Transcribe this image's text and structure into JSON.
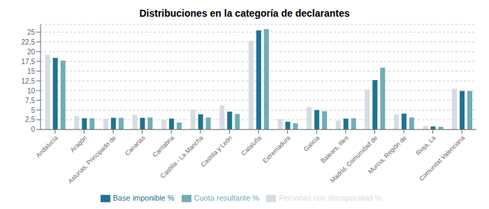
{
  "chart_data": {
    "type": "bar",
    "title": "Distribuciones en la categoría de declarantes",
    "categories": [
      "Andalucía",
      "Aragón",
      "Asturias, Principado de",
      "Canarias",
      "Cantabria",
      "Castilla - La Mancha",
      "Castilla y León",
      "Cataluña",
      "Extremadura",
      "Galicia",
      "Balears, Illes",
      "Madrid, Comunidad de",
      "Murcia, Región de",
      "Rioja, La",
      "Comunitat Valenciana"
    ],
    "series": [
      {
        "name": "Personas con discapacidad %",
        "color": "#d6dce4",
        "values": [
          19.2,
          3.5,
          2.8,
          3.8,
          2.5,
          5.1,
          6.2,
          22.8,
          2.7,
          5.8,
          2.3,
          10.3,
          3.9,
          0.9,
          10.5
        ]
      },
      {
        "name": "Base imponible %",
        "color": "#1f7391",
        "values": [
          18.4,
          2.9,
          3.0,
          3.0,
          2.8,
          3.9,
          4.6,
          25.5,
          2.0,
          5.0,
          2.8,
          12.7,
          4.1,
          0.8,
          9.9
        ]
      },
      {
        "name": "Cuota resultante %",
        "color": "#70adb5",
        "values": [
          17.7,
          2.9,
          3.0,
          3.1,
          1.8,
          3.1,
          4.0,
          25.8,
          1.6,
          4.7,
          2.9,
          15.9,
          3.1,
          0.7,
          9.9
        ]
      }
    ],
    "ylim": [
      0,
      27
    ],
    "yticks": [
      0,
      {
        "value": 2.5,
        "label": "2,5"
      },
      5,
      {
        "value": 7.5,
        "label": "7,5"
      },
      10,
      {
        "value": 12.5,
        "label": "12,5"
      },
      15,
      {
        "value": 17.5,
        "label": "17,5"
      },
      20,
      {
        "value": 22.5,
        "label": "22,5"
      },
      25
    ],
    "grid": true,
    "legend": "bottom"
  }
}
